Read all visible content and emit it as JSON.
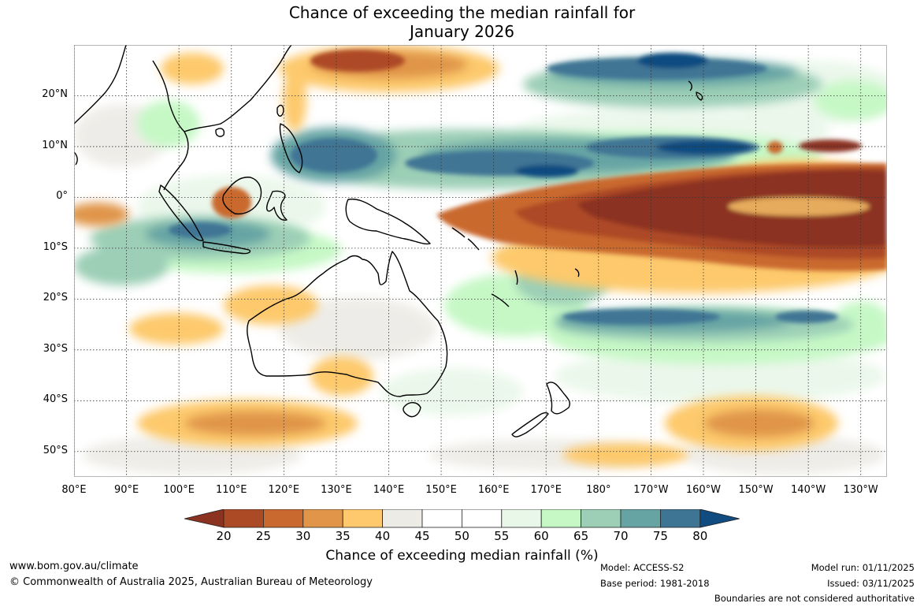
{
  "title": {
    "line1": "Chance of exceeding the median rainfall for",
    "line2": "January 2026"
  },
  "map": {
    "lat_labels": [
      "20°N",
      "10°N",
      "0°",
      "10°S",
      "20°S",
      "30°S",
      "40°S",
      "50°S"
    ],
    "lon_labels": [
      "80°E",
      "90°E",
      "100°E",
      "110°E",
      "120°E",
      "130°E",
      "140°E",
      "150°E",
      "160°E",
      "170°E",
      "180°",
      "170°W",
      "160°W",
      "150°W",
      "140°W",
      "130°W"
    ],
    "lon_range": [
      80,
      235
    ],
    "lat_range": [
      -55,
      30
    ]
  },
  "colorbar": {
    "ticks": [
      "20",
      "25",
      "30",
      "35",
      "40",
      "45",
      "50",
      "55",
      "60",
      "65",
      "70",
      "75",
      "80"
    ],
    "colors": [
      "#8b3220",
      "#ad4a26",
      "#c9692f",
      "#e09548",
      "#fdc96c",
      "#edebe6",
      "#ffffff",
      "#ffffff",
      "#e9f7e9",
      "#c6f8c6",
      "#9ccfb6",
      "#66a4a4",
      "#3f7594",
      "#114c80"
    ],
    "title": "Chance of exceeding median rainfall (%)"
  },
  "footer": {
    "website": "www.bom.gov.au/climate",
    "copyright": "© Commonwealth of Australia 2025, Australian Bureau of Meteorology",
    "model": "Model: ACCESS-S2",
    "base_period": "Base period: 1981-2018",
    "model_run": "Model run: 01/11/2025",
    "issued": "Issued: 03/11/2025",
    "disclaimer": "Boundaries are not considered authoritative"
  }
}
